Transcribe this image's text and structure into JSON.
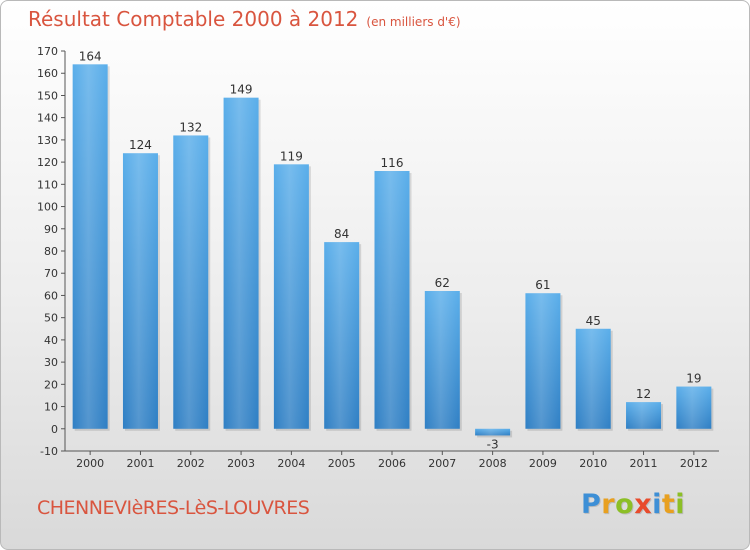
{
  "header": {
    "title": "Résultat Comptable 2000 à 2012",
    "subtitle": "(en milliers d'€)"
  },
  "footer": {
    "commune": "CHENNEVIèRES-LèS-LOUVRES",
    "logo": [
      "P",
      "r",
      "o",
      "x",
      "i",
      "t",
      "i"
    ],
    "logo_colors": [
      "#3d8fd6",
      "#e8a020",
      "#8cbf26",
      "#e84b2c",
      "#3d8fd6",
      "#e8a020",
      "#8cbf26"
    ]
  },
  "chart_data": {
    "type": "bar",
    "title": "Résultat Comptable 2000 à 2012",
    "subtitle": "(en milliers d'€)",
    "categories": [
      "2000",
      "2001",
      "2002",
      "2003",
      "2004",
      "2005",
      "2006",
      "2007",
      "2008",
      "2009",
      "2010",
      "2011",
      "2012"
    ],
    "values": [
      164,
      124,
      132,
      149,
      119,
      84,
      116,
      62,
      -3,
      61,
      45,
      12,
      19
    ],
    "ylim": [
      -10,
      170
    ],
    "yticks": [
      -10,
      0,
      10,
      20,
      30,
      40,
      50,
      60,
      70,
      80,
      90,
      100,
      110,
      120,
      130,
      140,
      150,
      160,
      170
    ],
    "xlabel": "",
    "ylabel": "",
    "grid": false,
    "bar_color": "#4f9fe0"
  }
}
